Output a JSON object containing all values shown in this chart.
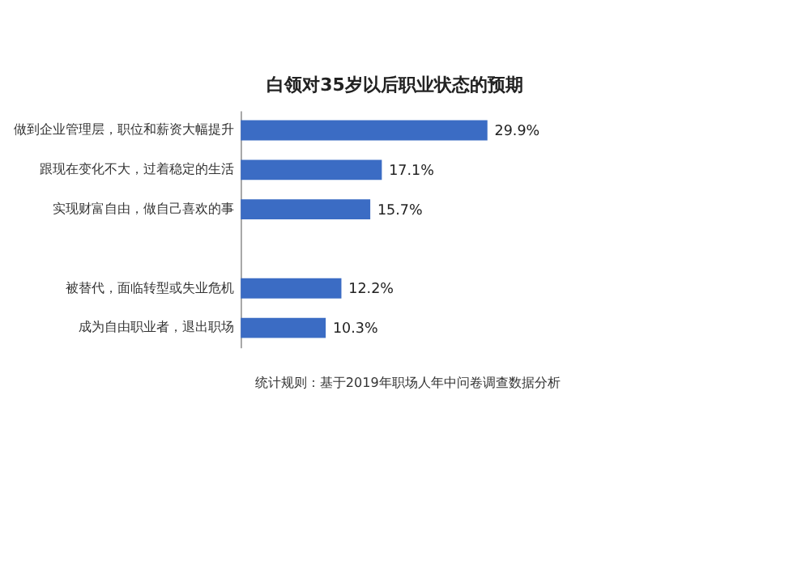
{
  "chart_data": {
    "type": "bar",
    "orientation": "horizontal",
    "title": "白领对35岁以后职业状态的预期",
    "categories": [
      "做到企业管理层，职位和薪资大幅提升",
      "跟现在变化不大，过着稳定的生活",
      "实现财富自由，做自己喜欢的事",
      null,
      "被替代，面临转型或失业危机",
      "成为自由职业者，退出职场"
    ],
    "values": [
      29.9,
      17.1,
      15.7,
      null,
      12.2,
      10.3
    ],
    "value_labels": [
      "29.9%",
      "17.1%",
      "15.7%",
      null,
      "12.2%",
      "10.3%"
    ],
    "color": "#3b6cc4",
    "annotations": [
      "统计规则：基于2019年职场人年中问卷调查数据分析"
    ]
  }
}
